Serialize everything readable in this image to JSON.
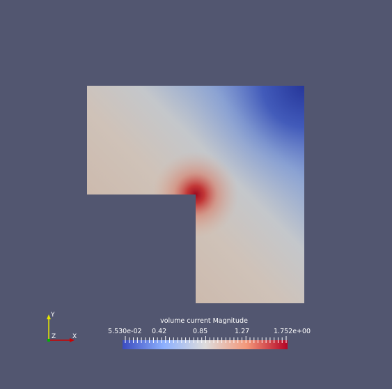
{
  "viewport": {
    "background": "#525670",
    "colormap": [
      "#3b4cc0",
      "#c8d9f1",
      "#f1c9b0",
      "#b40426"
    ]
  },
  "colorbar": {
    "title": "volume current Magnitude",
    "ticks": [
      "5.530e-02",
      "0.42",
      "0.85",
      "1.27",
      "1.752e+00"
    ],
    "range": [
      0.0553,
      1.752
    ]
  },
  "axes": {
    "y_label": "Y",
    "x_label": "X",
    "z_label": "Z",
    "colors": {
      "x": "#cc0000",
      "y": "#e6e600",
      "z": "#00b300"
    }
  }
}
